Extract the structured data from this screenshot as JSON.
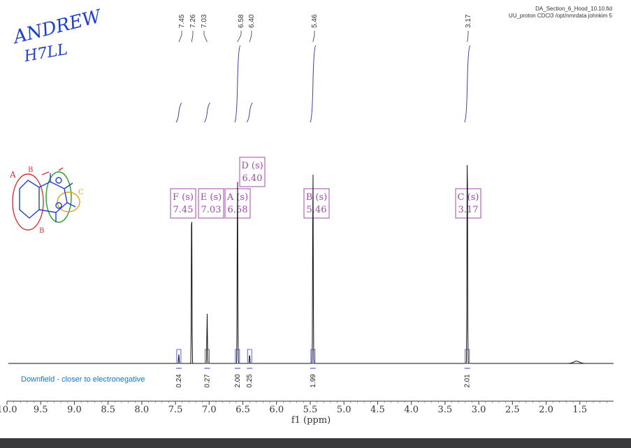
{
  "file_info": {
    "line1": "DA_Section_6_Hood_10.10.fid",
    "line2": "UU_proton CDCl3 /opt/nmrdata johnkim 5"
  },
  "handwriting": {
    "name_line1": "ANDREW",
    "name_line2": "H7LL"
  },
  "annotation": {
    "downfield_note": "Downfield - closer to electronegative"
  },
  "colors": {
    "spectrum": "#111111",
    "integral": "#3b3fb0",
    "label_purple": "#a04aa8",
    "integral_value": "#222222",
    "note_blue": "#1a73c8",
    "ink_blue": "#1f3fd1"
  },
  "chart_data": {
    "type": "line",
    "title": "",
    "xlabel": "f1 (ppm)",
    "ylabel": "",
    "xlim": [
      10.0,
      1.0
    ],
    "x_reversed": true,
    "x_ticks": [
      "10.0",
      "9.5",
      "9.0",
      "8.5",
      "8.0",
      "7.5",
      "7.0",
      "6.5",
      "6.0",
      "5.5",
      "5.0",
      "4.5",
      "4.0",
      "3.5",
      "3.0",
      "2.5",
      "2.0",
      "1.5"
    ],
    "peaks": [
      {
        "ppm": 7.45,
        "height": 0.04
      },
      {
        "ppm": 7.26,
        "height": 0.74
      },
      {
        "ppm": 7.03,
        "height": 0.22
      },
      {
        "ppm": 6.58,
        "height": 0.86
      },
      {
        "ppm": 6.4,
        "height": 0.04
      },
      {
        "ppm": 5.46,
        "height": 0.88
      },
      {
        "ppm": 3.17,
        "height": 1.0
      },
      {
        "ppm": 1.55,
        "height": 0.01
      }
    ],
    "shift_labels": [
      "7.45",
      "7.26",
      "7.03",
      "6.58",
      "6.40",
      "5.46",
      "3.17"
    ],
    "integrals": [
      {
        "ppm": 7.45,
        "value": "0.24"
      },
      {
        "ppm": 7.03,
        "value": "0.27"
      },
      {
        "ppm": 6.58,
        "value": "2.00"
      },
      {
        "ppm": 6.4,
        "value": "0.25"
      },
      {
        "ppm": 5.46,
        "value": "1.99"
      },
      {
        "ppm": 3.17,
        "value": "2.01"
      }
    ],
    "peak_assignments": [
      {
        "letter": "F (s)",
        "shift": "7.45"
      },
      {
        "letter": "E (s)",
        "shift": "7.03"
      },
      {
        "letter": "A (s)",
        "shift": "6.58"
      },
      {
        "letter": "D (s)",
        "shift": "6.40"
      },
      {
        "letter": "B (s)",
        "shift": "5.46"
      },
      {
        "letter": "C (s)",
        "shift": "3.17"
      }
    ],
    "grid": false,
    "legend": "none"
  }
}
